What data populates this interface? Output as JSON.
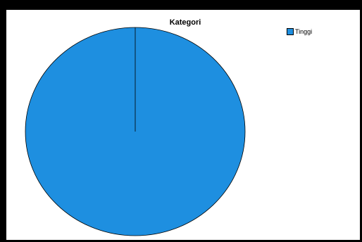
{
  "chart_data": {
    "type": "pie",
    "title": "Kategori",
    "categories": [
      "Tinggi"
    ],
    "values": [
      100
    ],
    "colors": [
      "#1e8fe0"
    ],
    "legend_position": "top-right"
  }
}
